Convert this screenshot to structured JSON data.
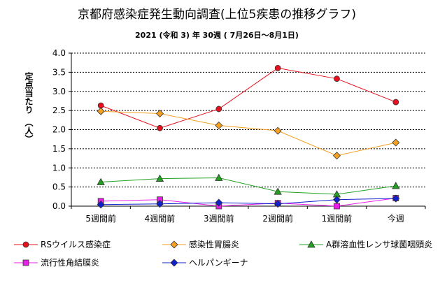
{
  "chart_data": {
    "type": "line",
    "title": "京都府感染症発生動向調査(上位5疾患の推移グラフ)",
    "subtitle": "2021 (令和 3) 年   30週  ( 7月26日～8月1日)",
    "ylabel": "定点当たり　（人）",
    "xlabel": "",
    "categories": [
      "5週間前",
      "4週間前",
      "3週間前",
      "2週間前",
      "1週間前",
      "今週"
    ],
    "ylim": [
      0,
      4
    ],
    "yticks": [
      "0.0",
      "0.5",
      "1.0",
      "1.5",
      "2.0",
      "2.5",
      "3.0",
      "3.5",
      "4.0"
    ],
    "grid": true,
    "legend_position": "bottom",
    "series": [
      {
        "name": "RSウイルス感染症",
        "values": [
          2.63,
          2.04,
          2.54,
          3.61,
          3.33,
          2.72
        ],
        "color": "#e8101e",
        "marker": "circle"
      },
      {
        "name": "感染性胃腸炎",
        "values": [
          2.48,
          2.42,
          2.11,
          1.97,
          1.32,
          1.66
        ],
        "color": "#f4a020",
        "marker": "diamond"
      },
      {
        "name": "A群溶血性レンサ球菌咽頭炎",
        "values": [
          0.63,
          0.72,
          0.74,
          0.38,
          0.31,
          0.53
        ],
        "color": "#22a020",
        "marker": "triangle"
      },
      {
        "name": "流行性角結膜炎",
        "values": [
          0.13,
          0.17,
          0.0,
          0.08,
          0.0,
          0.21
        ],
        "color": "#e81ee8",
        "marker": "square"
      },
      {
        "name": "ヘルパンギーナ",
        "values": [
          0.04,
          0.06,
          0.09,
          0.06,
          0.17,
          0.2
        ],
        "color": "#1020d0",
        "marker": "diamond"
      }
    ]
  }
}
